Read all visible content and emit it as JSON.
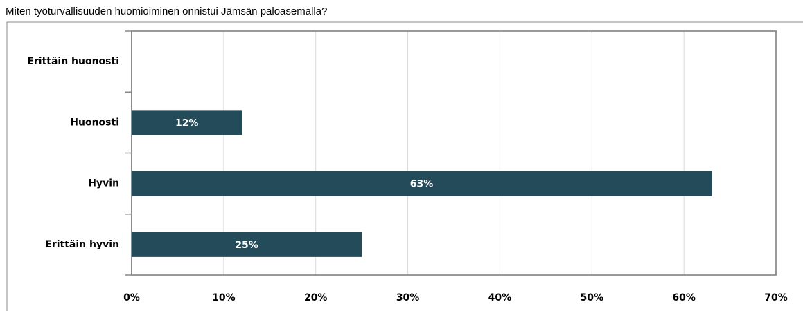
{
  "chart_data": {
    "type": "hbar",
    "title": "Miten työturvallisuuden huomioiminen onnistui Jämsän paloasemalla?",
    "categories": [
      "Erittäin huonosti",
      "Huonosti",
      "Hyvin",
      "Erittäin hyvin"
    ],
    "values": [
      null,
      12,
      63,
      25
    ],
    "value_labels": [
      null,
      "12%",
      "63%",
      "25%"
    ],
    "color": "#244b5a",
    "xlim": [
      0,
      70
    ],
    "xticks": [
      {
        "value": 0,
        "label": "0%"
      },
      {
        "value": 10,
        "label": "10%"
      },
      {
        "value": 20,
        "label": "20%"
      },
      {
        "value": 30,
        "label": "30%"
      },
      {
        "value": 40,
        "label": "40%"
      },
      {
        "value": 50,
        "label": "50%"
      },
      {
        "value": 60,
        "label": "60%"
      },
      {
        "value": 70,
        "label": "70%"
      }
    ],
    "grid": true
  }
}
